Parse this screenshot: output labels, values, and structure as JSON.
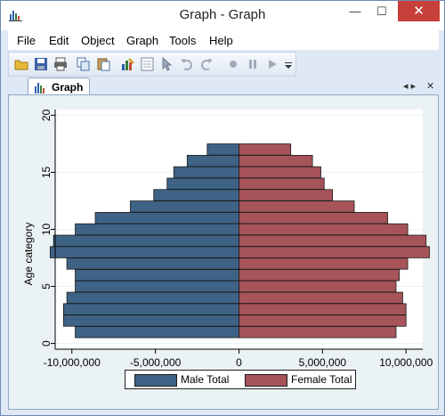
{
  "window": {
    "title": "Graph - Graph",
    "minimize_glyph": "—",
    "maximize_glyph": "☐",
    "close_glyph": "✕"
  },
  "menu": {
    "items": [
      "File",
      "Edit",
      "Object",
      "Graph",
      "Tools",
      "Help"
    ]
  },
  "toolbar": {
    "icons": [
      "open-folder-icon",
      "save-icon",
      "print-icon",
      "copy-icon",
      "paste-icon",
      "graph-editor-icon",
      "data-editor-icon",
      "pointer-icon",
      "undo-icon",
      "redo-icon",
      "record-icon",
      "pause-icon",
      "play-icon",
      "dropdown-arrow-icon"
    ]
  },
  "tabs": [
    {
      "label": "Graph",
      "icon": "bar-chart-icon"
    }
  ],
  "tab_controls": {
    "nav_glyph": "◂ ▸",
    "close_glyph": "✕"
  },
  "colors": {
    "male": "#3e6386",
    "female": "#a6535a",
    "plot_bg": "#ffffff",
    "frame_bg": "#eaf2f3"
  },
  "chart_data": {
    "type": "bar",
    "orientation": "horizontal",
    "xlabel": "",
    "ylabel": "Age category",
    "xlim": [
      -11000000,
      11000000
    ],
    "ylim": [
      -0.5,
      20.5
    ],
    "x_ticks": [
      -10000000,
      -5000000,
      0,
      5000000,
      10000000
    ],
    "x_tick_labels": [
      "-10,000,000",
      "-5,000,000",
      "0",
      "5,000,000",
      "10,000,000"
    ],
    "y_ticks": [
      0,
      5,
      10,
      15,
      20
    ],
    "y_tick_labels": [
      "0",
      "5",
      "10",
      "15",
      "20"
    ],
    "grid": true,
    "legend_position": "bottom",
    "categories": [
      1,
      2,
      3,
      4,
      5,
      6,
      7,
      8,
      9,
      10,
      11,
      12,
      13,
      14,
      15,
      16,
      17
    ],
    "series": [
      {
        "name": "Male Total",
        "values": [
          -9800000,
          -10500000,
          -10500000,
          -10300000,
          -9800000,
          -9800000,
          -10300000,
          -11300000,
          -11100000,
          -9800000,
          -8600000,
          -6500000,
          -5100000,
          -4300000,
          -3900000,
          -3100000,
          -1900000
        ]
      },
      {
        "name": "Female Total",
        "values": [
          9400000,
          10000000,
          10000000,
          9800000,
          9400000,
          9600000,
          10100000,
          11400000,
          11200000,
          10100000,
          8900000,
          6900000,
          5600000,
          5100000,
          4900000,
          4400000,
          3100000
        ]
      }
    ]
  }
}
